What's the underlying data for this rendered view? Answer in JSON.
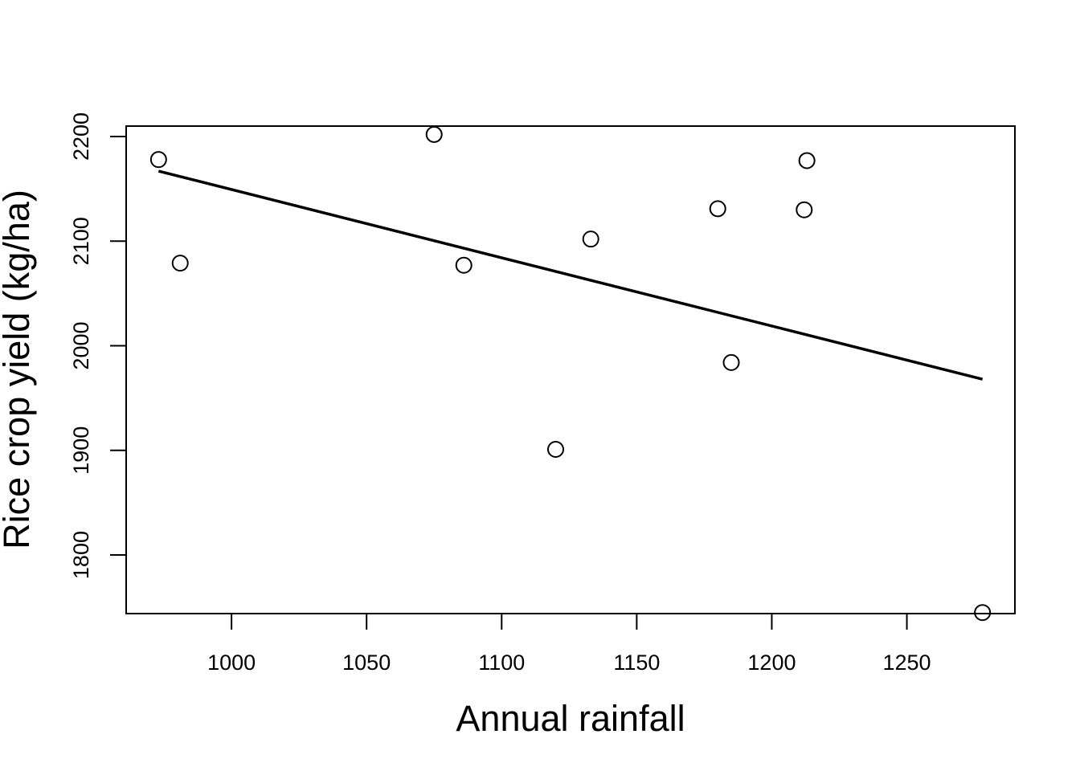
{
  "chart_data": {
    "type": "scatter",
    "title": "",
    "xlabel": "Annual rainfall",
    "ylabel": "Rice crop yield (kg/ha)",
    "xlim": [
      961,
      1290
    ],
    "ylim": [
      1744,
      2210
    ],
    "x_ticks": [
      1000,
      1050,
      1100,
      1150,
      1200,
      1250
    ],
    "y_ticks": [
      1800,
      1900,
      2000,
      2100,
      2200
    ],
    "x_tick_labels": [
      "1000",
      "1050",
      "1100",
      "1150",
      "1200",
      "1250"
    ],
    "y_tick_labels": [
      "1800",
      "1900",
      "2000",
      "2100",
      "2200"
    ],
    "grid": false,
    "legend": "none",
    "points": [
      {
        "x": 973,
        "y": 2178
      },
      {
        "x": 981,
        "y": 2079
      },
      {
        "x": 1075,
        "y": 2202
      },
      {
        "x": 1086,
        "y": 2077
      },
      {
        "x": 1120,
        "y": 1901
      },
      {
        "x": 1133,
        "y": 2102
      },
      {
        "x": 1180,
        "y": 2131
      },
      {
        "x": 1185,
        "y": 1984
      },
      {
        "x": 1212,
        "y": 2130
      },
      {
        "x": 1213,
        "y": 2177
      },
      {
        "x": 1278,
        "y": 1745
      }
    ],
    "fit_line": {
      "x": [
        973,
        1278
      ],
      "y": [
        2167,
        1968
      ]
    },
    "colors": {
      "points": "#000000",
      "line": "#000000",
      "frame": "#000000"
    }
  }
}
